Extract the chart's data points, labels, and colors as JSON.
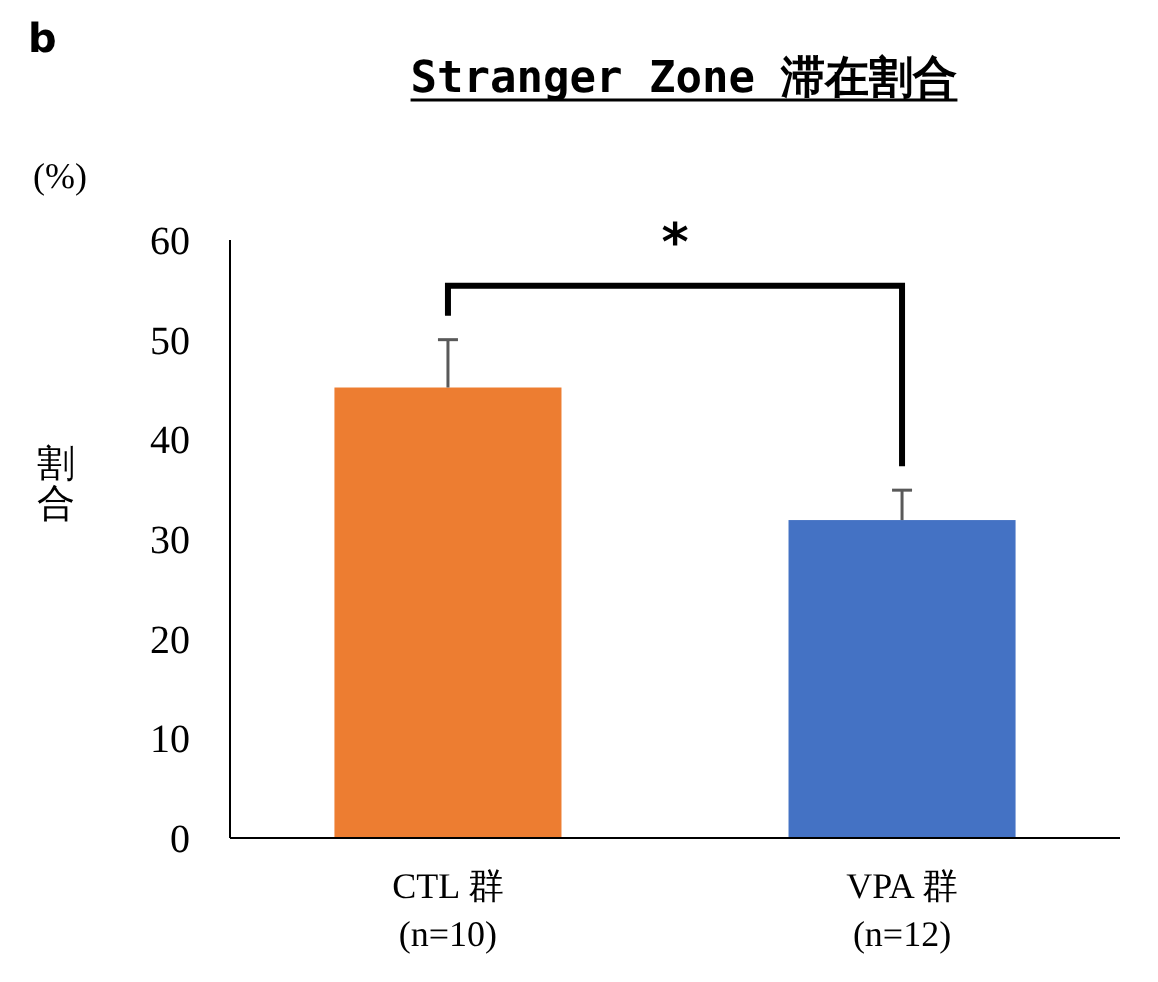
{
  "chart_data": {
    "type": "bar",
    "title": "Stranger Zone 滞在割合",
    "ylabel": "割合",
    "annotations": [
      "b",
      "(%)",
      "*"
    ],
    "categories": [
      "CTL 群\n(n=10)",
      "VPA 群\n(n=12)"
    ],
    "values": [
      45.2,
      31.9
    ],
    "colors": [
      "#ed7d31",
      "#4472c4"
    ],
    "errors": [
      [
        45.2,
        50.0
      ],
      [
        31.9,
        34.9
      ]
    ],
    "ylim": [
      0,
      60
    ],
    "yticks": [
      0,
      10,
      20,
      30,
      40,
      50,
      60
    ],
    "grid": false
  }
}
